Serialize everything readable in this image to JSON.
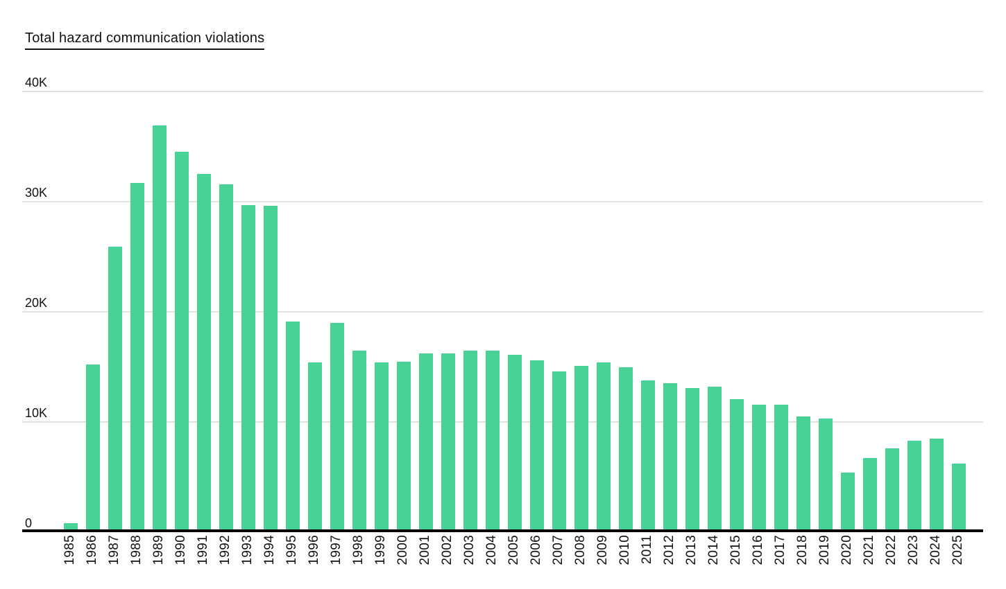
{
  "header": {
    "title": "Total hazard communication violations"
  },
  "colors": {
    "bar": "#49d295",
    "gridline": "#e3e3e3",
    "axis_line": "#000000",
    "text": "#111111"
  },
  "chart_data": {
    "type": "bar",
    "title": "Total hazard communication violations",
    "xlabel": "",
    "ylabel": "",
    "legend": "none",
    "grid": "horizontal",
    "x_label_rotation": -90,
    "ylim": [
      0,
      40000
    ],
    "yticks": [
      {
        "value": 40000,
        "label": "40K"
      },
      {
        "value": 30000,
        "label": "30K"
      },
      {
        "value": 20000,
        "label": "20K"
      },
      {
        "value": 10000,
        "label": "10K"
      },
      {
        "value": 0,
        "label": "0"
      }
    ],
    "categories": [
      "1985",
      "1986",
      "1987",
      "1988",
      "1989",
      "1990",
      "1991",
      "1992",
      "1993",
      "1994",
      "1995",
      "1996",
      "1997",
      "1998",
      "1999",
      "2000",
      "2001",
      "2002",
      "2003",
      "2004",
      "2005",
      "2006",
      "2007",
      "2008",
      "2009",
      "2010",
      "2011",
      "2012",
      "2013",
      "2014",
      "2015",
      "2016",
      "2017",
      "2018",
      "2019",
      "2020",
      "2021",
      "2022",
      "2023",
      "2024",
      "2025"
    ],
    "values": [
      800,
      15200,
      25900,
      31700,
      36900,
      34500,
      32500,
      31600,
      29700,
      29600,
      19100,
      15400,
      19000,
      16500,
      15400,
      15500,
      16200,
      16200,
      16500,
      16500,
      16100,
      15600,
      14600,
      15100,
      15400,
      15000,
      13800,
      13500,
      13100,
      13200,
      12100,
      11600,
      11600,
      10500,
      10300,
      5400,
      6700,
      7600,
      8300,
      8500,
      6200
    ]
  }
}
